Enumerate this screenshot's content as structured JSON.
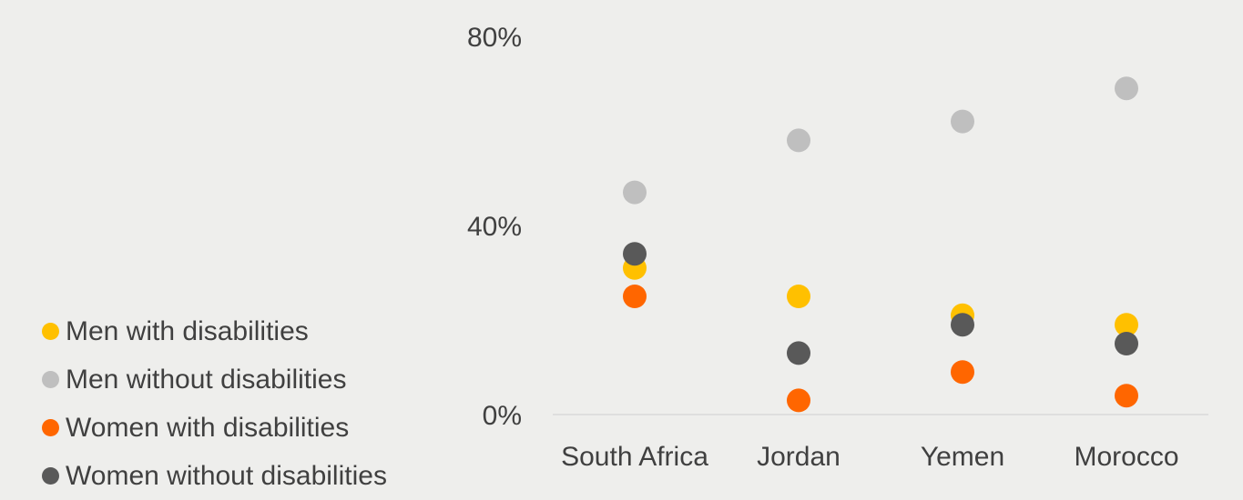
{
  "chart_data": {
    "type": "scatter",
    "title": "",
    "xlabel": "",
    "ylabel": "",
    "categories": [
      "South Africa",
      "Jordan",
      "Yemen",
      "Morocco"
    ],
    "ylim": [
      0,
      80
    ],
    "y_ticks": [
      0,
      40,
      80
    ],
    "y_tick_labels": [
      "0%",
      "40%",
      "80%"
    ],
    "grid": false,
    "legend_position": "left",
    "series": [
      {
        "name": "Men with disabilities",
        "color": "#FFC000",
        "values": [
          31,
          25,
          21,
          19
        ]
      },
      {
        "name": "Men without disabilities",
        "color": "#BFBFBF",
        "values": [
          47,
          58,
          62,
          69
        ]
      },
      {
        "name": "Women with disabilities",
        "color": "#FF6600",
        "values": [
          25,
          3,
          9,
          4
        ]
      },
      {
        "name": "Women without disabilities",
        "color": "#595959",
        "values": [
          34,
          13,
          19,
          15
        ]
      }
    ]
  }
}
